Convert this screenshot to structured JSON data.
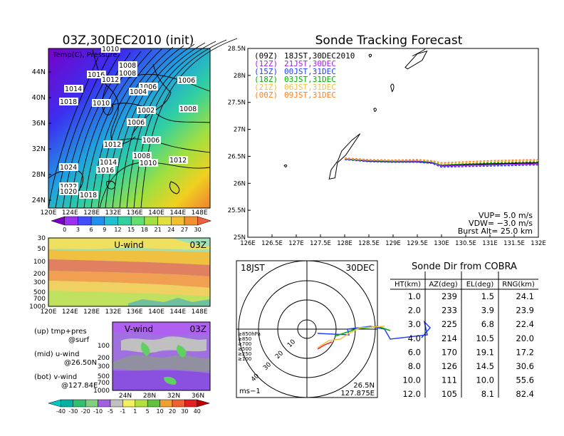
{
  "left_title": "03Z,30DEC2010 (init)",
  "right_title": "Sonde Tracking Forecast",
  "temp_panel": {
    "label": "Temp(C), Pressure",
    "lat_ticks": [
      "44N",
      "40N",
      "36N",
      "32N",
      "28N",
      "24N"
    ],
    "lon_ticks": [
      "120E",
      "124E",
      "128E",
      "132E",
      "136E",
      "140E",
      "144E",
      "148E"
    ],
    "colorbar_ticks": [
      "0",
      "3",
      "6",
      "9",
      "12",
      "15",
      "18",
      "21",
      "24",
      "27",
      "30"
    ],
    "isobar_labels": [
      {
        "v": "1010"
      },
      {
        "v": "1008"
      },
      {
        "v": "1016"
      },
      {
        "v": "1012"
      },
      {
        "v": "1008"
      },
      {
        "v": "1014"
      },
      {
        "v": "1006"
      },
      {
        "v": "1004"
      },
      {
        "v": "1006"
      },
      {
        "v": "1018"
      },
      {
        "v": "1010"
      },
      {
        "v": "1002"
      },
      {
        "v": "1008"
      },
      {
        "v": "1006"
      },
      {
        "v": "1006"
      },
      {
        "v": "1012"
      },
      {
        "v": "1008"
      },
      {
        "v": "1014"
      },
      {
        "v": "1010"
      },
      {
        "v": "1012"
      },
      {
        "v": "1016"
      },
      {
        "v": "1024"
      },
      {
        "v": "1022"
      },
      {
        "v": "1020"
      },
      {
        "v": "1018"
      }
    ]
  },
  "uwind_panel": {
    "title": "U-wind",
    "time": "03Z",
    "p_ticks": [
      "30",
      "50",
      "100",
      "200",
      "300",
      "500",
      "700",
      "1000"
    ],
    "lon_ticks": [
      "120E",
      "124E",
      "128E",
      "132E",
      "136E",
      "140E",
      "144E",
      "148E"
    ]
  },
  "vwind_panel": {
    "title": "V-wind",
    "time": "03Z",
    "p_ticks": [
      "30",
      "50",
      "100",
      "200",
      "300",
      "500",
      "700",
      "1000"
    ],
    "lat_ticks": [
      "24N",
      "28N",
      "32N",
      "36N"
    ],
    "colorbar_ticks": [
      "-40",
      "-30",
      "-20",
      "-10",
      "-5",
      "-1",
      "1",
      "5",
      "10",
      "20",
      "30",
      "40"
    ]
  },
  "notes": [
    "(up) tmp+pres",
    "@surf",
    "(mid) u-wind",
    "@26.50N",
    "(bot) v-wind",
    "@127.84E"
  ],
  "legend": [
    {
      "code": "(09Z)",
      "time": "18JST,30DEC2010",
      "color": "#000000"
    },
    {
      "code": "(12Z)",
      "time": "21JST,30DEC",
      "color": "#a020f0"
    },
    {
      "code": "(15Z)",
      "time": "00JST,31DEC",
      "color": "#2040ff"
    },
    {
      "code": "(18Z)",
      "time": "03JST,31DEC",
      "color": "#00b000"
    },
    {
      "code": "(21Z)",
      "time": "06JST,31DEC",
      "color": "#f0c040"
    },
    {
      "code": "(00Z)",
      "time": "09JST,31DEC",
      "color": "#ff8020"
    }
  ],
  "track_map": {
    "lat_ticks": [
      "28.5N",
      "28N",
      "27.5N",
      "27N",
      "26.5N",
      "26N",
      "25.5N",
      "25N"
    ],
    "lon_ticks": [
      "126E",
      "126.5E",
      "127E",
      "127.5E",
      "128E",
      "128.5E",
      "129E",
      "129.5E",
      "130E",
      "130.5E",
      "131E",
      "131.5E",
      "132E"
    ],
    "params": [
      "VUP=  5.0  m/s",
      "VDW= −3.0  m/s",
      "Burst Alt=  25.0  km"
    ]
  },
  "polar": {
    "time": "18JST",
    "date": "30DEC",
    "lat": "26.5N",
    "lon": "127.875E",
    "unit": "ms−1",
    "ring_labels": [
      "10",
      "20",
      "30",
      "40"
    ],
    "pressure_legend": [
      {
        "label": "≥850hPa",
        "color": "#ff2020"
      },
      {
        "label": "≥850",
        "color": "#ff8020"
      },
      {
        "label": "≥700",
        "color": "#f0c040"
      },
      {
        "label": "≥500",
        "color": "#00b000"
      },
      {
        "label": "≥250",
        "color": "#20b0f0"
      },
      {
        "label": "≥100",
        "color": "#2040ff"
      }
    ]
  },
  "table": {
    "title": "Sonde Dir from COBRA",
    "headers": [
      "HT(km)",
      "AZ(deg)",
      "EL(deg)",
      "RNG(km)"
    ],
    "rows": [
      [
        "1.0",
        "239",
        "1.5",
        "24.1"
      ],
      [
        "2.0",
        "233",
        "3.9",
        "23.9"
      ],
      [
        "3.0",
        "225",
        "6.8",
        "22.4"
      ],
      [
        "4.0",
        "214",
        "10.5",
        "20.0"
      ],
      [
        "6.0",
        "170",
        "19.1",
        "17.2"
      ],
      [
        "8.0",
        "126",
        "14.5",
        "30.6"
      ],
      [
        "10.0",
        "111",
        "10.0",
        "55.6"
      ],
      [
        "12.0",
        "105",
        "8.1",
        "82.4"
      ]
    ]
  },
  "chart_data": [
    {
      "type": "heatmap",
      "panel": "surface temperature with sea-level pressure isobars",
      "xlim": [
        120,
        150
      ],
      "ylim": [
        22,
        48
      ],
      "colorbar": [
        0,
        3,
        6,
        9,
        12,
        15,
        18,
        21,
        24,
        27,
        30
      ]
    },
    {
      "type": "heatmap",
      "panel": "u-wind cross section at 26.50N",
      "xlim": [
        120,
        150
      ],
      "p_levels": [
        30,
        50,
        100,
        200,
        300,
        500,
        700,
        1000
      ]
    },
    {
      "type": "heatmap",
      "panel": "v-wind cross section at 127.84E",
      "xlim": [
        22,
        38
      ],
      "p_levels": [
        30,
        50,
        100,
        200,
        300,
        500,
        700,
        1000
      ],
      "colorbar": [
        -40,
        -30,
        -20,
        -10,
        -5,
        -1,
        1,
        5,
        10,
        20,
        30,
        40
      ]
    },
    {
      "type": "line",
      "panel": "sonde tracks",
      "xlim": [
        126,
        132
      ],
      "ylim": [
        25,
        28.5
      ],
      "series": [
        {
          "name": "(09Z) 18JST,30DEC2010",
          "x": [
            128.0,
            128.5,
            129.0,
            129.5,
            129.8,
            130.0,
            130.5,
            131.0,
            131.5,
            132.0
          ],
          "y": [
            26.45,
            26.41,
            26.4,
            26.4,
            26.38,
            26.33,
            26.35,
            26.36,
            26.37,
            26.38
          ]
        },
        {
          "name": "(12Z) 21JST,30DEC",
          "x": [
            128.0,
            128.5,
            129.0,
            129.5,
            129.8,
            130.0,
            130.5,
            131.0,
            131.5,
            132.0
          ],
          "y": [
            26.45,
            26.42,
            26.41,
            26.41,
            26.39,
            26.32,
            26.33,
            26.34,
            26.35,
            26.36
          ]
        },
        {
          "name": "(15Z) 00JST,31DEC",
          "x": [
            128.0,
            128.5,
            129.0,
            129.5,
            129.8,
            130.0,
            130.5,
            131.0,
            131.5,
            132.0
          ],
          "y": [
            26.44,
            26.4,
            26.39,
            26.39,
            26.37,
            26.3,
            26.31,
            26.32,
            26.33,
            26.34
          ]
        },
        {
          "name": "(18Z) 03JST,31DEC",
          "x": [
            128.0,
            128.5,
            129.0,
            129.5,
            129.8,
            130.0,
            130.5,
            131.0,
            131.5,
            132.0
          ],
          "y": [
            26.45,
            26.42,
            26.41,
            26.42,
            26.4,
            26.34,
            26.36,
            26.38,
            26.39,
            26.4
          ]
        },
        {
          "name": "(21Z) 06JST,31DEC",
          "x": [
            128.0,
            128.5,
            129.0,
            129.5,
            129.8,
            130.0,
            130.5,
            131.0,
            131.5,
            132.0
          ],
          "y": [
            26.46,
            26.43,
            26.42,
            26.43,
            26.41,
            26.36,
            26.38,
            26.4,
            26.41,
            26.42
          ]
        },
        {
          "name": "(00Z) 09JST,31DEC",
          "x": [
            128.0,
            128.5,
            129.0,
            129.5,
            129.8,
            130.0,
            130.5,
            131.0,
            131.5,
            132.0
          ],
          "y": [
            26.47,
            26.44,
            26.43,
            26.44,
            26.42,
            26.38,
            26.4,
            26.42,
            26.43,
            26.44
          ]
        }
      ]
    }
  ]
}
